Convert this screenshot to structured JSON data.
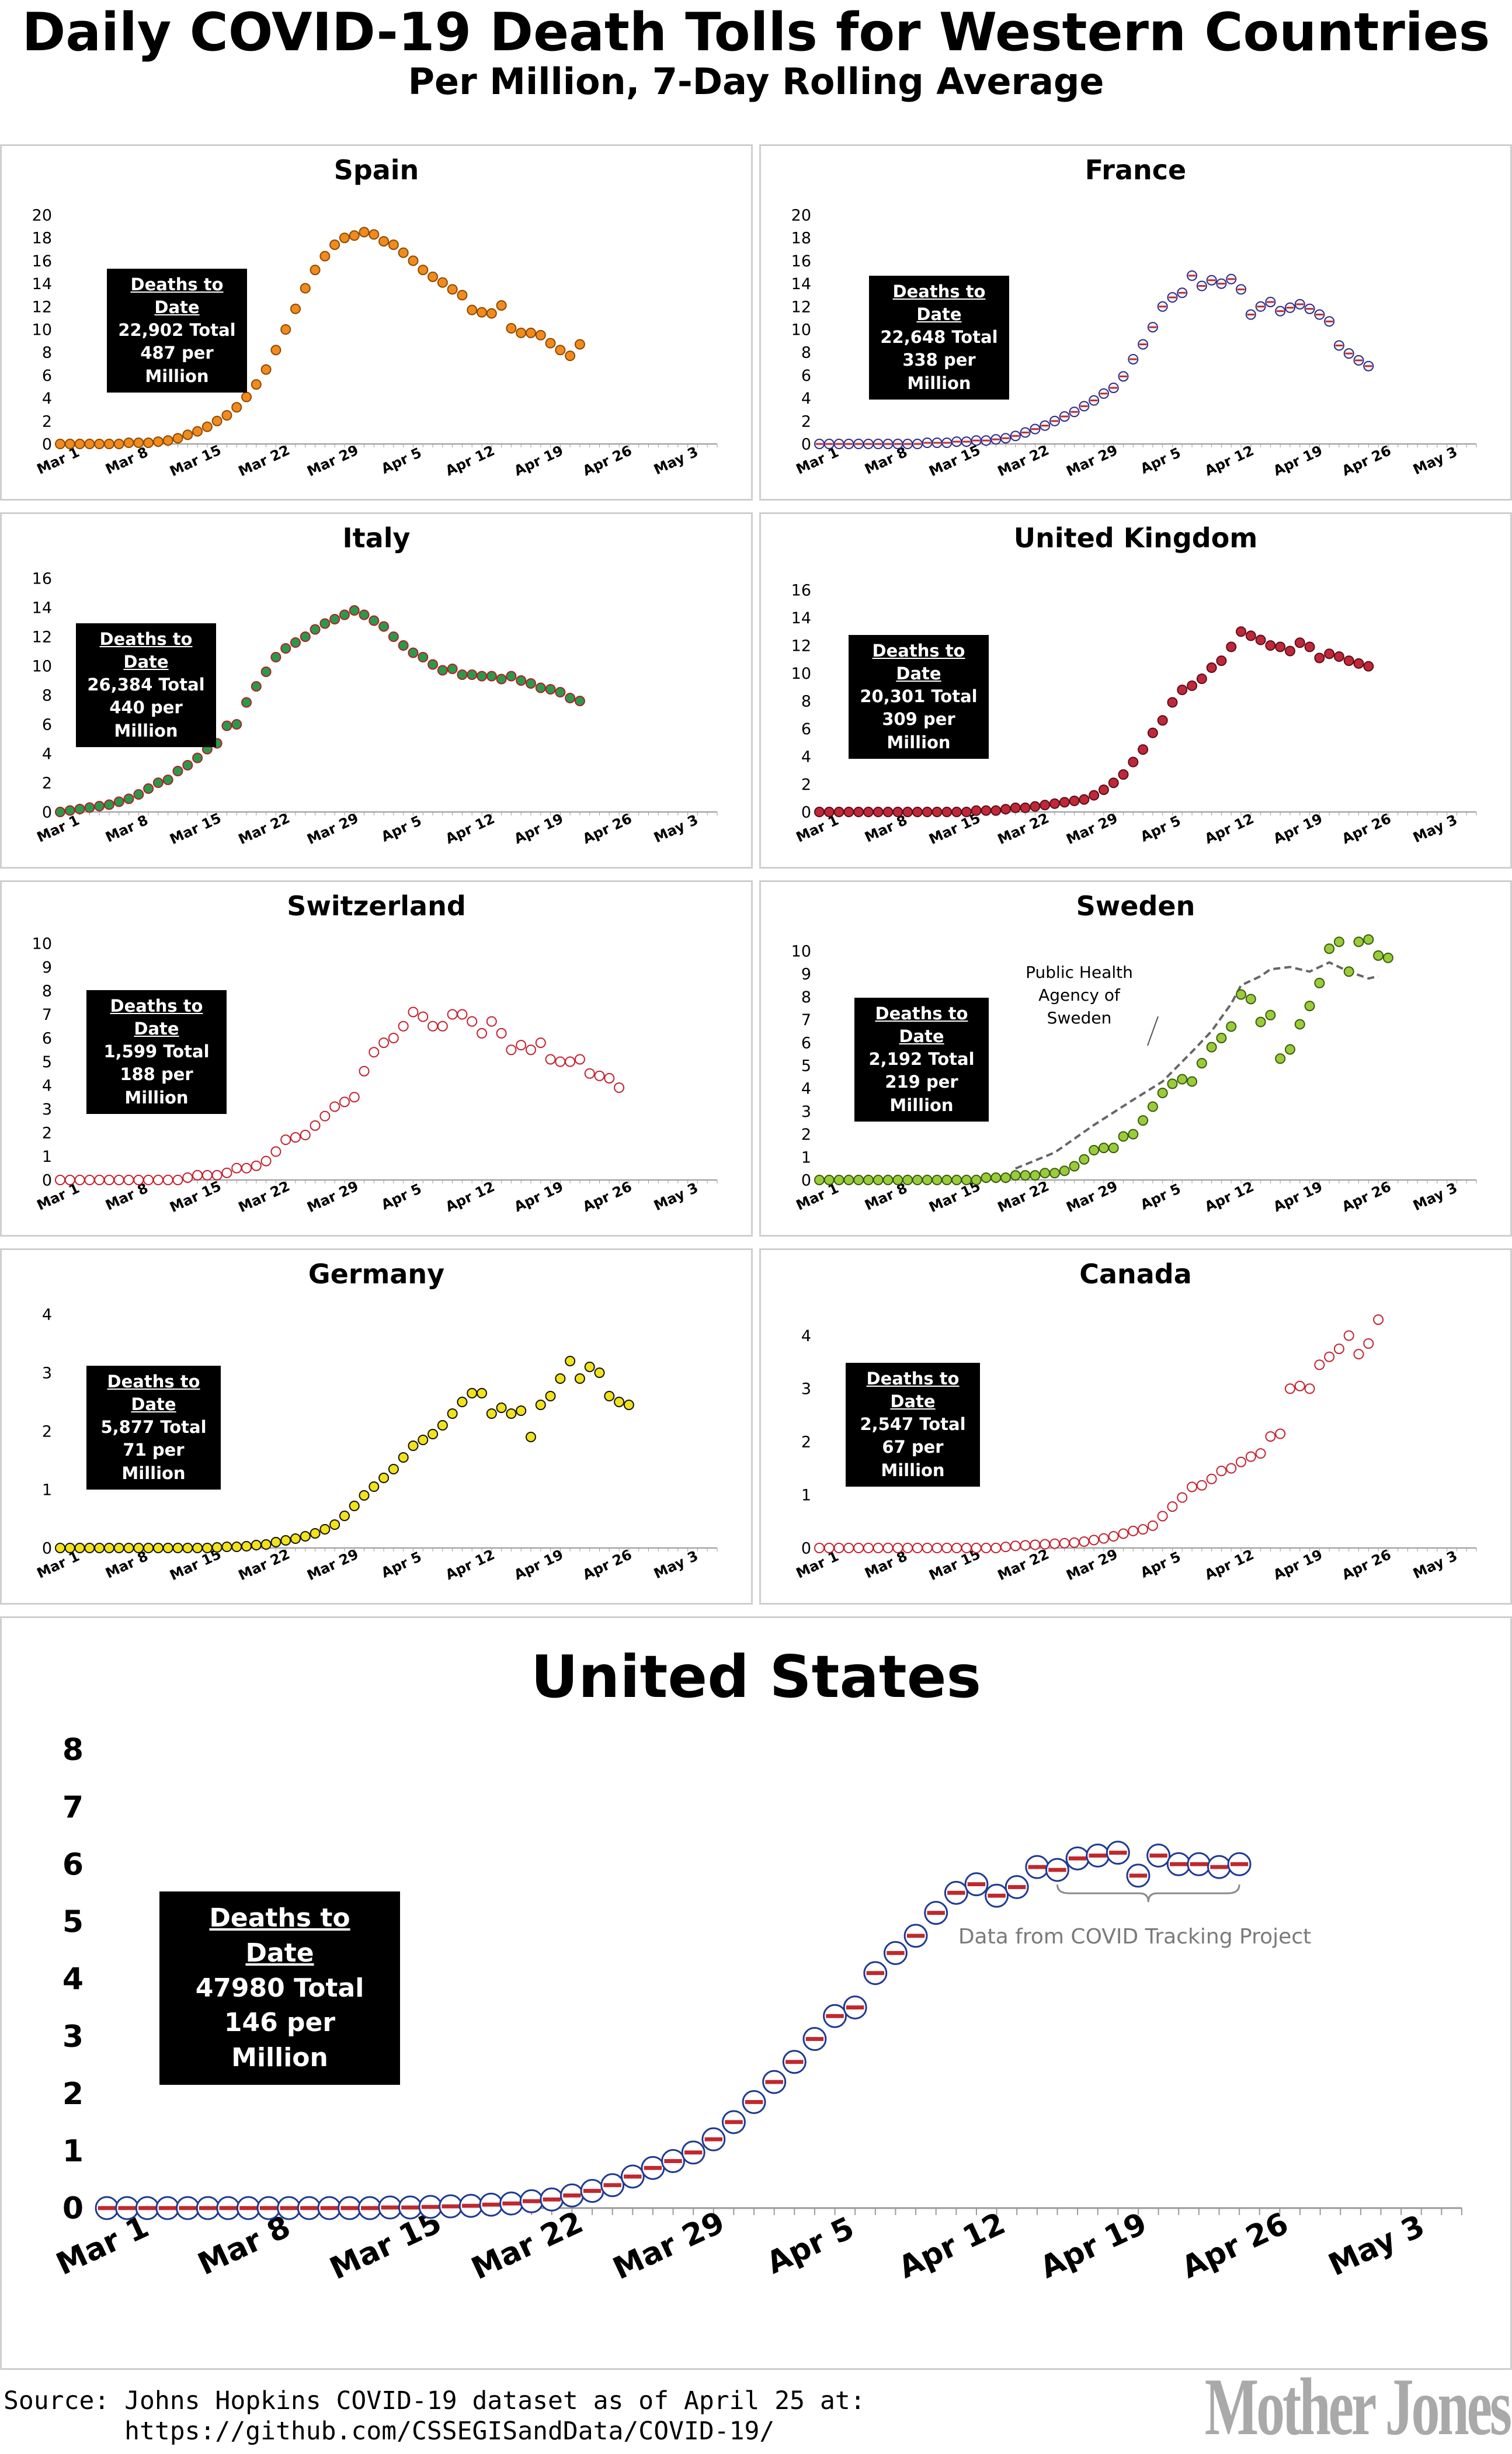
{
  "header": {
    "title": "Daily COVID-19 Death Tolls for Western Countries",
    "subtitle": "Per Million, 7-Day Rolling Average"
  },
  "footer": {
    "source_line1": "Source: Johns Hopkins COVID-19 dataset as of April 25 at:",
    "source_line2": "        https://github.com/CSSEGISandData/COVID-19/",
    "brand": "Mother Jones"
  },
  "x_tick_labels": [
    "Mar 1",
    "Mar 8",
    "Mar 15",
    "Mar 22",
    "Mar 29",
    "Apr 5",
    "Apr 12",
    "Apr 19",
    "Apr 26",
    "May 3"
  ],
  "chart_data": [
    {
      "type": "scatter",
      "title": "Spain",
      "xlabel": "",
      "ylabel": "",
      "x_range": [
        "Mar 1",
        "May 6"
      ],
      "ylim": [
        0,
        20
      ],
      "yticks": [
        0,
        2,
        4,
        6,
        8,
        10,
        12,
        14,
        16,
        18,
        20
      ],
      "grid": false,
      "colors": {
        "fill": "#f28a1c",
        "edge": "#8a4a06"
      },
      "annotation": {
        "header": "Deaths to Date",
        "line1": "22,902 Total",
        "line2": "487 per Million"
      },
      "values": [
        0,
        0,
        0,
        0,
        0,
        0,
        0,
        0.1,
        0.1,
        0.1,
        0.2,
        0.3,
        0.5,
        0.8,
        1.1,
        1.5,
        2.0,
        2.5,
        3.2,
        4.1,
        5.2,
        6.5,
        8.2,
        10.0,
        11.8,
        13.6,
        15.2,
        16.4,
        17.4,
        18.0,
        18.2,
        18.5,
        18.3,
        17.7,
        17.4,
        16.7,
        16.0,
        15.2,
        14.6,
        14.1,
        13.5,
        13.0,
        11.7,
        11.5,
        11.4,
        12.1,
        10.1,
        9.7,
        9.7,
        9.5,
        8.8,
        8.2,
        7.7,
        8.7
      ]
    },
    {
      "type": "scatter",
      "title": "France",
      "xlabel": "",
      "ylabel": "",
      "x_range": [
        "Mar 1",
        "May 6"
      ],
      "ylim": [
        0,
        20
      ],
      "yticks": [
        0,
        2,
        4,
        6,
        8,
        10,
        12,
        14,
        16,
        18,
        20
      ],
      "grid": false,
      "colors": {
        "fill": "#f4f4f4",
        "edge": "#2a2a8a",
        "accent": "#c0282d"
      },
      "annotation": {
        "header": "Deaths to Date",
        "line1": "22,648 Total",
        "line2": "338 per Million"
      },
      "values": [
        0,
        0,
        0,
        0,
        0,
        0,
        0,
        0,
        0,
        0,
        0,
        0.1,
        0.1,
        0.1,
        0.2,
        0.2,
        0.3,
        0.3,
        0.4,
        0.5,
        0.7,
        1.0,
        1.3,
        1.6,
        2.0,
        2.4,
        2.8,
        3.3,
        3.8,
        4.4,
        4.9,
        5.9,
        7.4,
        8.7,
        10.2,
        12.0,
        12.8,
        13.2,
        14.7,
        13.8,
        14.3,
        14.0,
        14.4,
        13.5,
        11.3,
        12.0,
        12.4,
        11.6,
        11.9,
        12.2,
        11.8,
        11.3,
        10.7,
        8.6,
        7.9,
        7.3,
        6.8
      ]
    },
    {
      "type": "scatter",
      "title": "Italy",
      "xlabel": "",
      "ylabel": "",
      "x_range": [
        "Mar 1",
        "May 6"
      ],
      "ylim": [
        0,
        16
      ],
      "yticks": [
        0,
        2,
        4,
        6,
        8,
        10,
        12,
        14,
        16
      ],
      "grid": false,
      "colors": {
        "fill": "#2a9a4a",
        "edge": "#b01e28"
      },
      "annotation": {
        "header": "Deaths to Date",
        "line1": "26,384 Total",
        "line2": "440 per Million"
      },
      "values": [
        0,
        0.1,
        0.2,
        0.3,
        0.4,
        0.5,
        0.7,
        0.9,
        1.2,
        1.6,
        2.0,
        2.2,
        2.8,
        3.2,
        3.7,
        4.3,
        4.7,
        5.9,
        6.0,
        7.5,
        8.6,
        9.6,
        10.6,
        11.2,
        11.6,
        12.0,
        12.5,
        12.9,
        13.2,
        13.5,
        13.8,
        13.5,
        13.1,
        12.7,
        12.0,
        11.4,
        10.9,
        10.6,
        10.1,
        9.7,
        9.8,
        9.4,
        9.4,
        9.3,
        9.3,
        9.1,
        9.3,
        9.0,
        8.8,
        8.5,
        8.4,
        8.2,
        7.8,
        7.6
      ]
    },
    {
      "type": "scatter",
      "title": "United Kingdom",
      "xlabel": "",
      "ylabel": "",
      "x_range": [
        "Mar 1",
        "May 6"
      ],
      "ylim": [
        0,
        16
      ],
      "yticks": [
        0,
        2,
        4,
        6,
        8,
        10,
        12,
        14,
        16
      ],
      "grid": false,
      "colors": {
        "fill": "#c0283a",
        "edge": "#5a0e18"
      },
      "annotation": {
        "header": "Deaths to Date",
        "line1": "20,301 Total",
        "line2": "309 per Million"
      },
      "values": [
        0,
        0,
        0,
        0,
        0,
        0,
        0,
        0,
        0,
        0,
        0,
        0,
        0,
        0,
        0,
        0,
        0.1,
        0.1,
        0.1,
        0.2,
        0.3,
        0.3,
        0.4,
        0.5,
        0.6,
        0.7,
        0.8,
        0.9,
        1.2,
        1.6,
        2.1,
        2.7,
        3.6,
        4.5,
        5.7,
        6.6,
        7.9,
        8.8,
        9.1,
        9.6,
        10.4,
        10.9,
        11.9,
        13.0,
        12.7,
        12.4,
        12.0,
        11.9,
        11.6,
        12.2,
        11.9,
        11.1,
        11.4,
        11.2,
        10.9,
        10.7,
        10.5
      ]
    },
    {
      "type": "scatter",
      "title": "Switzerland",
      "xlabel": "",
      "ylabel": "",
      "x_range": [
        "Mar 1",
        "May 6"
      ],
      "ylim": [
        0,
        10
      ],
      "yticks": [
        0,
        1,
        2,
        3,
        4,
        5,
        6,
        7,
        8,
        9,
        10
      ],
      "grid": false,
      "colors": {
        "fill": "#ffffff",
        "edge": "#c4202e"
      },
      "annotation": {
        "header": "Deaths to Date",
        "line1": "1,599 Total",
        "line2": "188 per Million"
      },
      "values": [
        0,
        0,
        0,
        0,
        0,
        0,
        0,
        0,
        0,
        0,
        0,
        0,
        0,
        0.1,
        0.2,
        0.2,
        0.2,
        0.3,
        0.5,
        0.5,
        0.6,
        0.8,
        1.2,
        1.7,
        1.8,
        1.9,
        2.3,
        2.7,
        3.1,
        3.3,
        3.5,
        4.6,
        5.4,
        5.8,
        6.0,
        6.5,
        7.1,
        6.9,
        6.5,
        6.5,
        7.0,
        7.0,
        6.7,
        6.2,
        6.7,
        6.2,
        5.5,
        5.7,
        5.5,
        5.8,
        5.1,
        5.0,
        5.0,
        5.1,
        4.5,
        4.4,
        4.3,
        3.9
      ]
    },
    {
      "type": "scatter",
      "title": "Sweden",
      "xlabel": "",
      "ylabel": "",
      "x_range": [
        "Mar 1",
        "May 6"
      ],
      "ylim": [
        0,
        10
      ],
      "yticks": [
        0,
        1,
        2,
        3,
        4,
        5,
        6,
        7,
        8,
        9,
        10
      ],
      "grid": false,
      "colors": {
        "fill": "#9acc3a",
        "edge": "#3a5a10",
        "line": "#666666"
      },
      "annotation": {
        "header": "Deaths to Date",
        "line1": "2,192 Total",
        "line2": "219 per Million"
      },
      "note": "Public Health Agency of Sweden",
      "values": [
        0,
        0,
        0,
        0,
        0,
        0,
        0,
        0,
        0,
        0,
        0,
        0,
        0,
        0,
        0,
        0,
        0,
        0.1,
        0.1,
        0.1,
        0.2,
        0.2,
        0.2,
        0.3,
        0.3,
        0.4,
        0.6,
        0.9,
        1.3,
        1.4,
        1.4,
        1.9,
        2.0,
        2.6,
        3.2,
        3.8,
        4.2,
        4.4,
        4.3,
        5.1,
        5.8,
        6.2,
        6.7,
        8.1,
        7.9,
        6.9,
        7.2,
        5.3,
        5.7,
        6.8,
        7.6,
        8.6,
        10.1,
        10.4,
        9.1,
        10.4,
        10.5,
        9.8,
        9.7
      ],
      "reference_series": {
        "name": "Public Health Agency of Sweden",
        "x_days": [
          20,
          24,
          28,
          32,
          35,
          38,
          40,
          42,
          43,
          45,
          46,
          48,
          50,
          52,
          54,
          56,
          57
        ],
        "values": [
          0.5,
          1.2,
          2.4,
          3.5,
          4.3,
          5.6,
          6.5,
          7.7,
          8.5,
          8.9,
          9.2,
          9.3,
          9.1,
          9.5,
          9.1,
          8.8,
          8.9
        ]
      }
    },
    {
      "type": "scatter",
      "title": "Germany",
      "xlabel": "",
      "ylabel": "",
      "x_range": [
        "Mar 1",
        "May 6"
      ],
      "ylim": [
        0,
        4
      ],
      "yticks": [
        0,
        1,
        2,
        3,
        4
      ],
      "grid": false,
      "colors": {
        "fill": "#f2e21a",
        "edge": "#111111"
      },
      "annotation": {
        "header": "Deaths to Date",
        "line1": "5,877 Total",
        "line2": "71 per Million"
      },
      "values": [
        0,
        0,
        0,
        0,
        0,
        0,
        0,
        0,
        0,
        0,
        0,
        0,
        0,
        0,
        0,
        0,
        0.01,
        0.02,
        0.02,
        0.03,
        0.05,
        0.06,
        0.1,
        0.13,
        0.16,
        0.2,
        0.25,
        0.32,
        0.4,
        0.55,
        0.72,
        0.9,
        1.05,
        1.2,
        1.35,
        1.55,
        1.75,
        1.85,
        1.95,
        2.1,
        2.3,
        2.5,
        2.65,
        2.65,
        2.3,
        2.4,
        2.3,
        2.35,
        1.9,
        2.45,
        2.6,
        2.9,
        3.2,
        2.9,
        3.1,
        3.0,
        2.6,
        2.5,
        2.45
      ]
    },
    {
      "type": "scatter",
      "title": "Canada",
      "xlabel": "",
      "ylabel": "",
      "x_range": [
        "Mar 1",
        "May 6"
      ],
      "ylim": [
        0,
        4.4
      ],
      "yticks": [
        0,
        1,
        2,
        3,
        4
      ],
      "grid": false,
      "colors": {
        "fill": "#ffffff",
        "edge": "#c4202e"
      },
      "annotation": {
        "header": "Deaths to Date",
        "line1": "2,547 Total",
        "line2": "67 per Million"
      },
      "values": [
        0,
        0,
        0,
        0,
        0,
        0,
        0,
        0,
        0,
        0,
        0,
        0,
        0,
        0,
        0,
        0,
        0,
        0,
        0,
        0.02,
        0.04,
        0.05,
        0.06,
        0.07,
        0.08,
        0.09,
        0.1,
        0.12,
        0.15,
        0.18,
        0.22,
        0.27,
        0.32,
        0.35,
        0.42,
        0.6,
        0.78,
        0.95,
        1.15,
        1.18,
        1.3,
        1.45,
        1.5,
        1.62,
        1.72,
        1.78,
        2.1,
        2.15,
        3.0,
        3.05,
        3.0,
        3.45,
        3.6,
        3.75,
        4.0,
        3.65,
        3.85,
        4.3
      ]
    },
    {
      "type": "scatter",
      "title": "United States",
      "xlabel": "",
      "ylabel": "",
      "x_range": [
        "Mar 1",
        "May 6"
      ],
      "ylim": [
        0,
        8
      ],
      "yticks": [
        0,
        1,
        2,
        3,
        4,
        5,
        6,
        7,
        8
      ],
      "grid": false,
      "colors": {
        "fill": "#ffffff",
        "edge": "#1f3a93",
        "accent": "#c0282d"
      },
      "annotation": {
        "header": "Deaths to Date",
        "line1": "47980 Total",
        "line2": "146 per Million"
      },
      "note": "Data from COVID Tracking Project",
      "values": [
        0,
        0,
        0,
        0,
        0,
        0,
        0,
        0,
        0,
        0,
        0,
        0,
        0,
        0,
        0.01,
        0.01,
        0.02,
        0.03,
        0.04,
        0.06,
        0.08,
        0.12,
        0.15,
        0.22,
        0.3,
        0.4,
        0.55,
        0.7,
        0.82,
        0.97,
        1.2,
        1.5,
        1.85,
        2.2,
        2.55,
        2.95,
        3.35,
        3.5,
        4.1,
        4.45,
        4.75,
        5.15,
        5.5,
        5.65,
        5.45,
        5.6,
        5.95,
        5.9,
        6.1,
        6.15,
        6.2,
        5.8,
        6.15,
        6.0,
        6.0,
        5.95,
        6.0
      ]
    }
  ]
}
